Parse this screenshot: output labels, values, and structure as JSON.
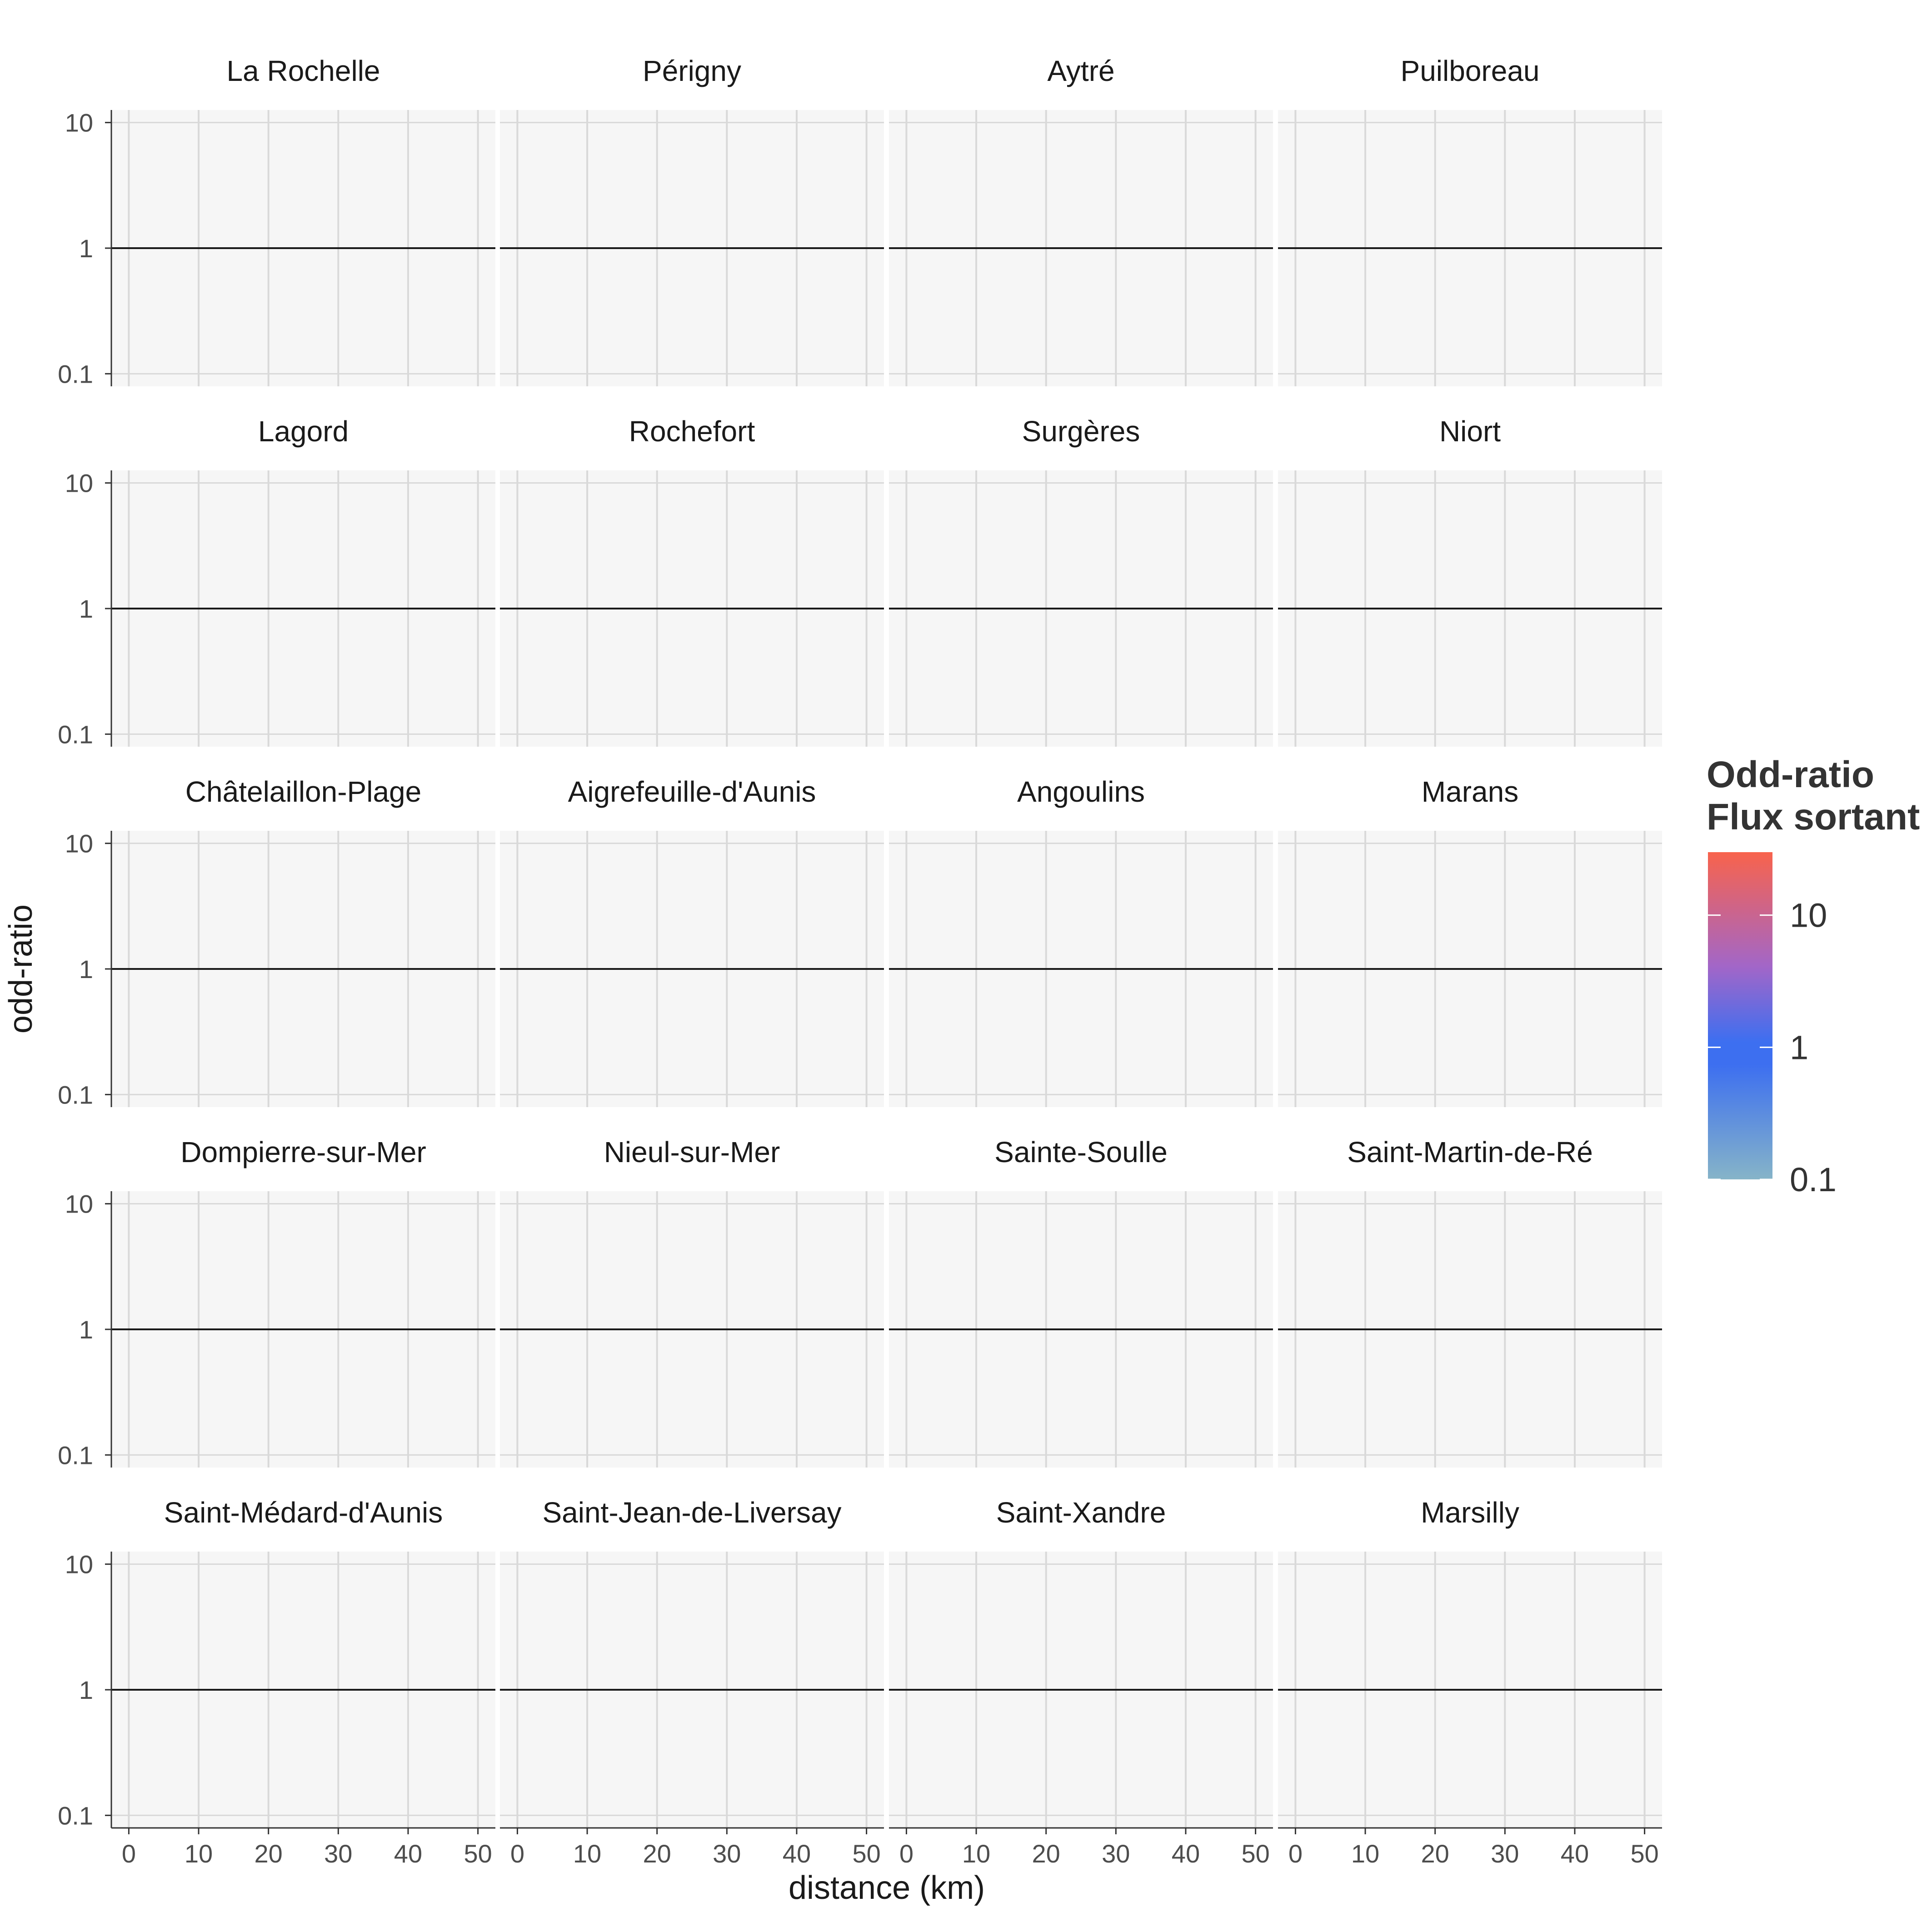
{
  "chart_data": {
    "type": "line",
    "facet_layout": {
      "rows": 5,
      "cols": 4
    },
    "panels": [
      "La Rochelle",
      "Périgny",
      "Aytré",
      "Puilboreau",
      "Lagord",
      "Rochefort",
      "Surgères",
      "Niort",
      "Châtelaillon-Plage",
      "Aigrefeuille-d'Aunis",
      "Angoulins",
      "Marans",
      "Dompierre-sur-Mer",
      "Nieul-sur-Mer",
      "Sainte-Soulle",
      "Saint-Martin-de-Ré",
      "Saint-Médard-d'Aunis",
      "Saint-Jean-de-Liversay",
      "Saint-Xandre",
      "Marsilly"
    ],
    "reference_line": {
      "y": 1
    },
    "xlabel": "distance (km)",
    "ylabel": "odd-ratio",
    "xlim": [
      -2.5,
      52.5
    ],
    "ylim_log10": [
      -1.1,
      1.1
    ],
    "x_ticks": [
      0,
      10,
      20,
      30,
      40,
      50
    ],
    "x_tick_labels": [
      "0",
      "10",
      "20",
      "30",
      "40",
      "50"
    ],
    "y_ticks": [
      0.1,
      1,
      10
    ],
    "y_tick_labels": [
      "0.1",
      "1",
      "10"
    ],
    "legend": {
      "title_line1": "Odd-ratio",
      "title_line2": "Flux sortant",
      "position": "right",
      "labels": [
        "10",
        "1",
        "0.1"
      ],
      "values": [
        10,
        1,
        0.1
      ],
      "colors": {
        "high": "#f8634c",
        "mid": "#3d6ff0",
        "low": "#86b4c8"
      }
    }
  }
}
